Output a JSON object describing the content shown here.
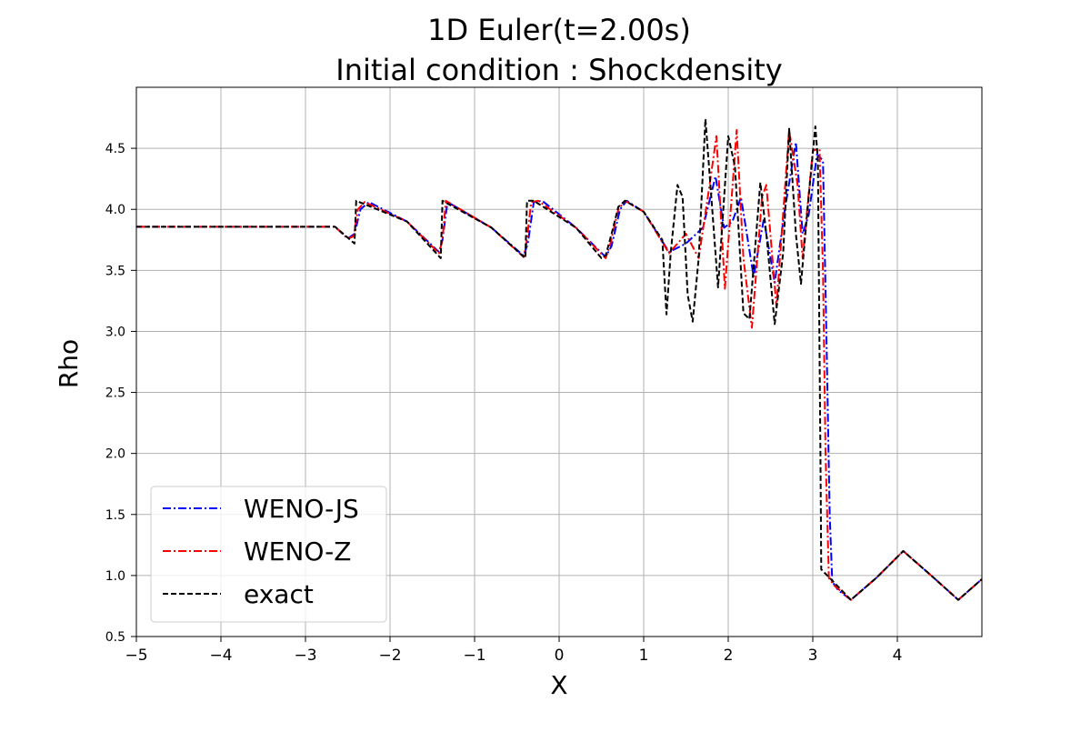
{
  "chart_data": {
    "type": "line",
    "title": [
      "1D Euler(t=2.00s)",
      "Initial condition : Shockdensity"
    ],
    "xlabel": "X",
    "ylabel": "Rho",
    "xlim": [
      -5,
      5
    ],
    "ylim": [
      0.5,
      5.0
    ],
    "xticks": [
      -5,
      -4,
      -3,
      -2,
      -1,
      0,
      1,
      2,
      3,
      4
    ],
    "xtick_labels": [
      "−5",
      "−4",
      "−3",
      "−2",
      "−1",
      "0",
      "1",
      "2",
      "3",
      "4"
    ],
    "yticks": [
      0.5,
      1.0,
      1.5,
      2.0,
      2.5,
      3.0,
      3.5,
      4.0,
      4.5
    ],
    "ytick_labels": [
      "0.5",
      "1.0",
      "1.5",
      "2.0",
      "2.5",
      "3.0",
      "3.5",
      "4.0",
      "4.5"
    ],
    "grid": true,
    "legend_position": "lower-left",
    "series": [
      {
        "name": "WENO-JS",
        "color": "#0000ff",
        "style": "dashdot",
        "points": [
          [
            -5,
            3.857
          ],
          [
            -2.65,
            3.857
          ],
          [
            -2.5,
            3.76
          ],
          [
            -2.42,
            3.8
          ],
          [
            -2.35,
            4.0
          ],
          [
            -2.25,
            4.06
          ],
          [
            -1.8,
            3.9
          ],
          [
            -1.42,
            3.65
          ],
          [
            -1.38,
            3.75
          ],
          [
            -1.32,
            4.06
          ],
          [
            -0.8,
            3.85
          ],
          [
            -0.42,
            3.62
          ],
          [
            -0.37,
            3.72
          ],
          [
            -0.3,
            4.06
          ],
          [
            -0.2,
            4.07
          ],
          [
            0.2,
            3.85
          ],
          [
            0.55,
            3.61
          ],
          [
            0.62,
            3.7
          ],
          [
            0.72,
            4.0
          ],
          [
            0.8,
            4.07
          ],
          [
            1.0,
            3.98
          ],
          [
            1.3,
            3.65
          ],
          [
            1.5,
            3.72
          ],
          [
            1.7,
            3.85
          ],
          [
            1.85,
            4.27
          ],
          [
            1.95,
            3.85
          ],
          [
            2.05,
            3.9
          ],
          [
            2.15,
            4.1
          ],
          [
            2.3,
            3.45
          ],
          [
            2.42,
            3.92
          ],
          [
            2.55,
            3.4
          ],
          [
            2.67,
            4.0
          ],
          [
            2.8,
            4.55
          ],
          [
            2.88,
            3.8
          ],
          [
            2.95,
            3.95
          ],
          [
            3.05,
            4.45
          ],
          [
            3.12,
            4.4
          ],
          [
            3.16,
            3.0
          ],
          [
            3.2,
            1.5
          ],
          [
            3.23,
            0.95
          ],
          [
            3.3,
            0.88
          ],
          [
            3.45,
            0.8
          ],
          [
            3.75,
            0.98
          ],
          [
            4.07,
            1.2
          ],
          [
            4.4,
            1.0
          ],
          [
            4.72,
            0.8
          ],
          [
            5.0,
            0.97
          ]
        ]
      },
      {
        "name": "WENO-Z",
        "color": "#ff0000",
        "style": "dashdot",
        "points": [
          [
            -5,
            3.857
          ],
          [
            -2.65,
            3.857
          ],
          [
            -2.5,
            3.76
          ],
          [
            -2.43,
            3.78
          ],
          [
            -2.38,
            4.0
          ],
          [
            -2.3,
            4.06
          ],
          [
            -1.8,
            3.9
          ],
          [
            -1.42,
            3.64
          ],
          [
            -1.38,
            3.75
          ],
          [
            -1.34,
            4.07
          ],
          [
            -0.8,
            3.85
          ],
          [
            -0.42,
            3.61
          ],
          [
            -0.39,
            3.7
          ],
          [
            -0.33,
            4.06
          ],
          [
            -0.25,
            4.07
          ],
          [
            0.2,
            3.85
          ],
          [
            0.55,
            3.6
          ],
          [
            0.6,
            3.7
          ],
          [
            0.7,
            4.0
          ],
          [
            0.78,
            4.07
          ],
          [
            1.0,
            3.98
          ],
          [
            1.3,
            3.64
          ],
          [
            1.5,
            3.8
          ],
          [
            1.65,
            3.6
          ],
          [
            1.78,
            4.2
          ],
          [
            1.86,
            4.6
          ],
          [
            1.96,
            3.35
          ],
          [
            2.1,
            4.65
          ],
          [
            2.18,
            3.6
          ],
          [
            2.28,
            3.03
          ],
          [
            2.4,
            4.1
          ],
          [
            2.45,
            4.2
          ],
          [
            2.57,
            3.2
          ],
          [
            2.72,
            4.65
          ],
          [
            2.82,
            4.2
          ],
          [
            2.88,
            3.6
          ],
          [
            3.0,
            4.48
          ],
          [
            3.08,
            4.5
          ],
          [
            3.12,
            3.5
          ],
          [
            3.15,
            2.0
          ],
          [
            3.19,
            0.98
          ],
          [
            3.25,
            0.92
          ],
          [
            3.45,
            0.8
          ],
          [
            3.75,
            0.98
          ],
          [
            4.07,
            1.2
          ],
          [
            4.4,
            1.0
          ],
          [
            4.72,
            0.8
          ],
          [
            5.0,
            0.97
          ]
        ]
      },
      {
        "name": "exact",
        "color": "#000000",
        "style": "dashed",
        "points": [
          [
            -5,
            3.857
          ],
          [
            -2.65,
            3.857
          ],
          [
            -2.42,
            3.72
          ],
          [
            -2.4,
            4.07
          ],
          [
            -1.8,
            3.9
          ],
          [
            -1.4,
            3.6
          ],
          [
            -1.38,
            4.07
          ],
          [
            -0.8,
            3.85
          ],
          [
            -0.4,
            3.6
          ],
          [
            -0.38,
            4.07
          ],
          [
            -0.3,
            4.07
          ],
          [
            0.2,
            3.85
          ],
          [
            0.5,
            3.6
          ],
          [
            0.55,
            3.62
          ],
          [
            0.62,
            3.8
          ],
          [
            0.7,
            4.02
          ],
          [
            0.78,
            4.07
          ],
          [
            1.0,
            3.98
          ],
          [
            1.22,
            3.75
          ],
          [
            1.27,
            3.14
          ],
          [
            1.32,
            3.65
          ],
          [
            1.4,
            4.2
          ],
          [
            1.46,
            4.1
          ],
          [
            1.52,
            3.3
          ],
          [
            1.58,
            3.08
          ],
          [
            1.65,
            3.6
          ],
          [
            1.73,
            4.74
          ],
          [
            1.8,
            4.1
          ],
          [
            1.88,
            3.36
          ],
          [
            2.0,
            4.6
          ],
          [
            2.08,
            4.35
          ],
          [
            2.18,
            3.15
          ],
          [
            2.25,
            3.1
          ],
          [
            2.38,
            4.22
          ],
          [
            2.45,
            3.8
          ],
          [
            2.55,
            3.06
          ],
          [
            2.65,
            3.65
          ],
          [
            2.72,
            4.66
          ],
          [
            2.8,
            3.8
          ],
          [
            2.86,
            3.39
          ],
          [
            2.95,
            4.1
          ],
          [
            3.03,
            4.68
          ],
          [
            3.06,
            4.4
          ],
          [
            3.09,
            2.0
          ],
          [
            3.1,
            1.05
          ],
          [
            3.2,
            0.98
          ],
          [
            3.45,
            0.8
          ],
          [
            3.75,
            0.98
          ],
          [
            4.07,
            1.2
          ],
          [
            4.4,
            1.0
          ],
          [
            4.72,
            0.8
          ],
          [
            5.0,
            0.97
          ]
        ]
      }
    ]
  }
}
